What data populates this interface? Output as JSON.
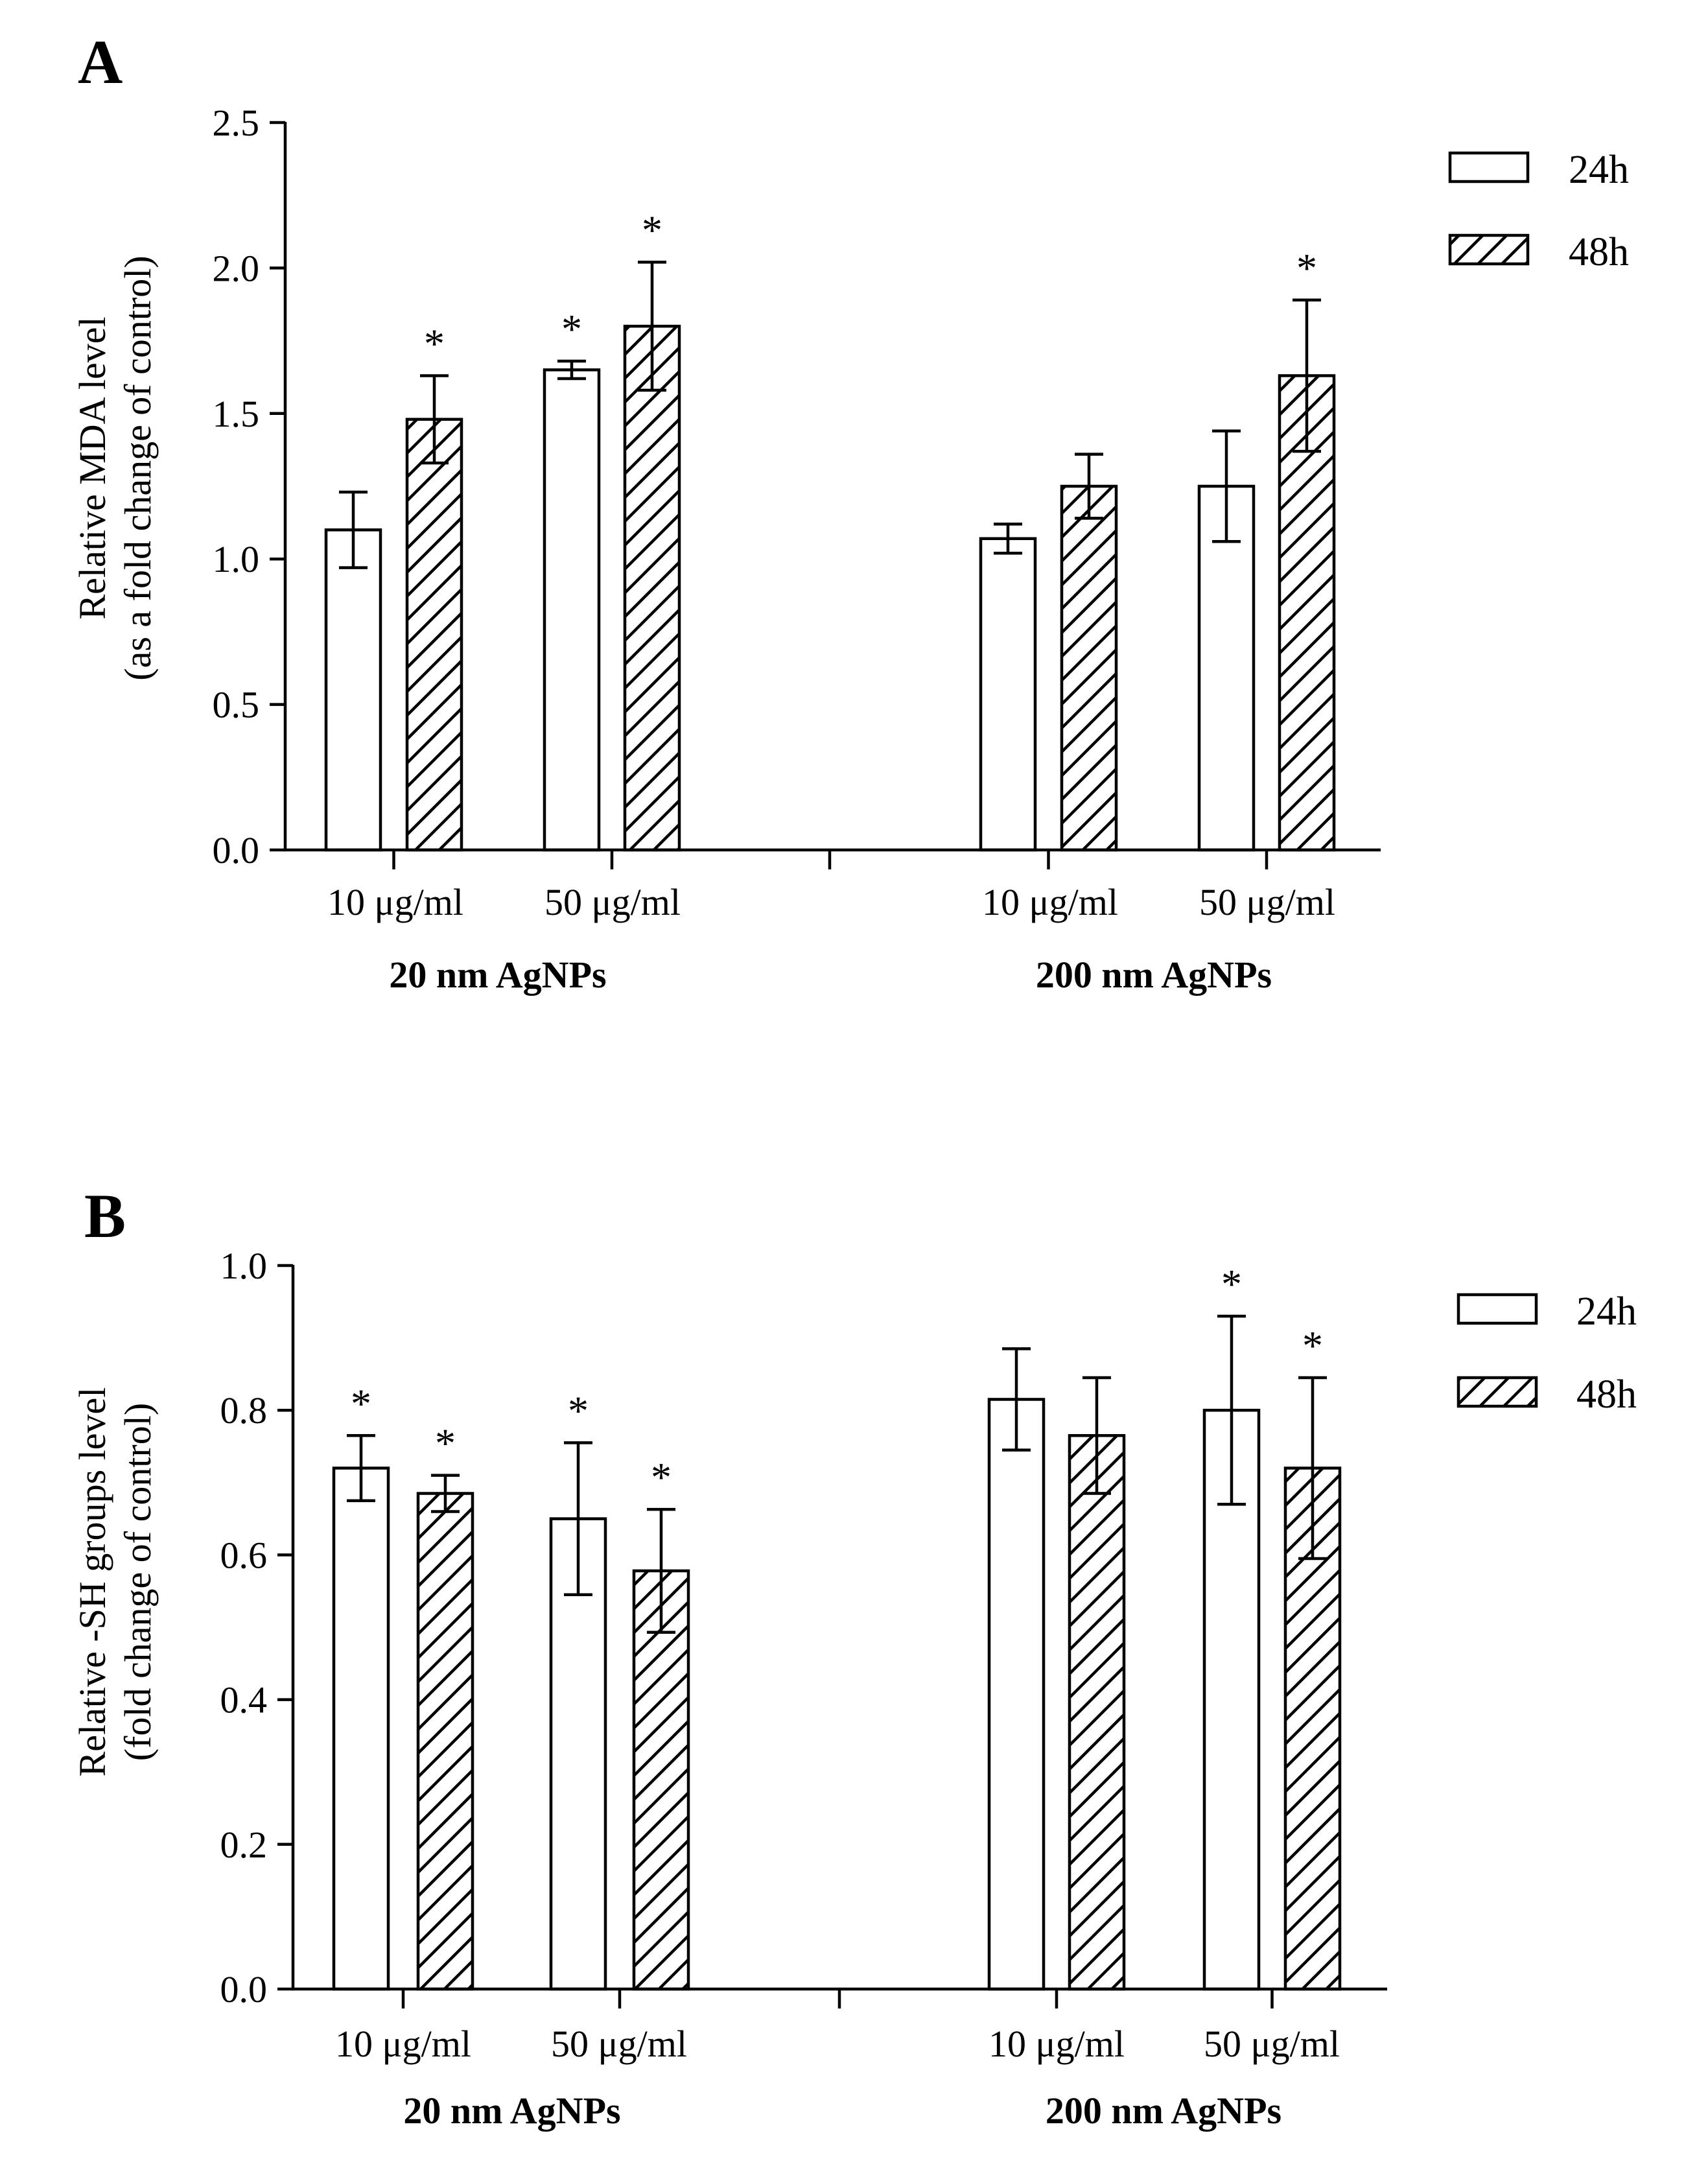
{
  "chart_data": [
    {
      "type": "bar",
      "panel": "A",
      "ylabel_line1": "Relative MDA level",
      "ylabel_line2": "(as a fold change of control)",
      "ylim": [
        0,
        2.5
      ],
      "yticks": [
        "0.0",
        "0.5",
        "1.0",
        "1.5",
        "2.0",
        "2.5"
      ],
      "groups": [
        {
          "label": "20 nm AgNPs",
          "categories": [
            "10 μg/ml",
            "50 μg/ml"
          ]
        },
        {
          "label": "200 nm AgNPs",
          "categories": [
            "10 μg/ml",
            "50 μg/ml"
          ]
        }
      ],
      "legend": [
        "24h",
        "48h"
      ],
      "legend_position": "top-right",
      "series": [
        {
          "name": "24h",
          "pattern": "open",
          "values": [
            1.1,
            1.65,
            1.07,
            1.25
          ],
          "errors": [
            0.13,
            0.03,
            0.05,
            0.19
          ],
          "significant": [
            false,
            true,
            false,
            false
          ]
        },
        {
          "name": "48h",
          "pattern": "hatched",
          "values": [
            1.48,
            1.8,
            1.25,
            1.63
          ],
          "errors": [
            0.15,
            0.22,
            0.11,
            0.26
          ],
          "significant": [
            true,
            true,
            false,
            true
          ]
        }
      ],
      "sig_marker": "*"
    },
    {
      "type": "bar",
      "panel": "B",
      "ylabel_line1": "Relative -SH groups level",
      "ylabel_line2": "(fold change of control)",
      "ylim": [
        0,
        1.0
      ],
      "yticks": [
        "0.0",
        "0.2",
        "0.4",
        "0.6",
        "0.8",
        "1.0"
      ],
      "groups": [
        {
          "label": "20 nm AgNPs",
          "categories": [
            "10 μg/ml",
            "50 μg/ml"
          ]
        },
        {
          "label": "200 nm AgNPs",
          "categories": [
            "10 μg/ml",
            "50 μg/ml"
          ]
        }
      ],
      "legend": [
        "24h",
        "48h"
      ],
      "legend_position": "top-right",
      "series": [
        {
          "name": "24h",
          "pattern": "open",
          "values": [
            0.72,
            0.65,
            0.815,
            0.8
          ],
          "errors": [
            0.045,
            0.105,
            0.07,
            0.13
          ],
          "significant": [
            true,
            true,
            false,
            true
          ]
        },
        {
          "name": "48h",
          "pattern": "hatched",
          "values": [
            0.685,
            0.578,
            0.765,
            0.72
          ],
          "errors": [
            0.025,
            0.085,
            0.08,
            0.125
          ],
          "significant": [
            true,
            true,
            false,
            true
          ]
        }
      ],
      "sig_marker": "*"
    }
  ]
}
